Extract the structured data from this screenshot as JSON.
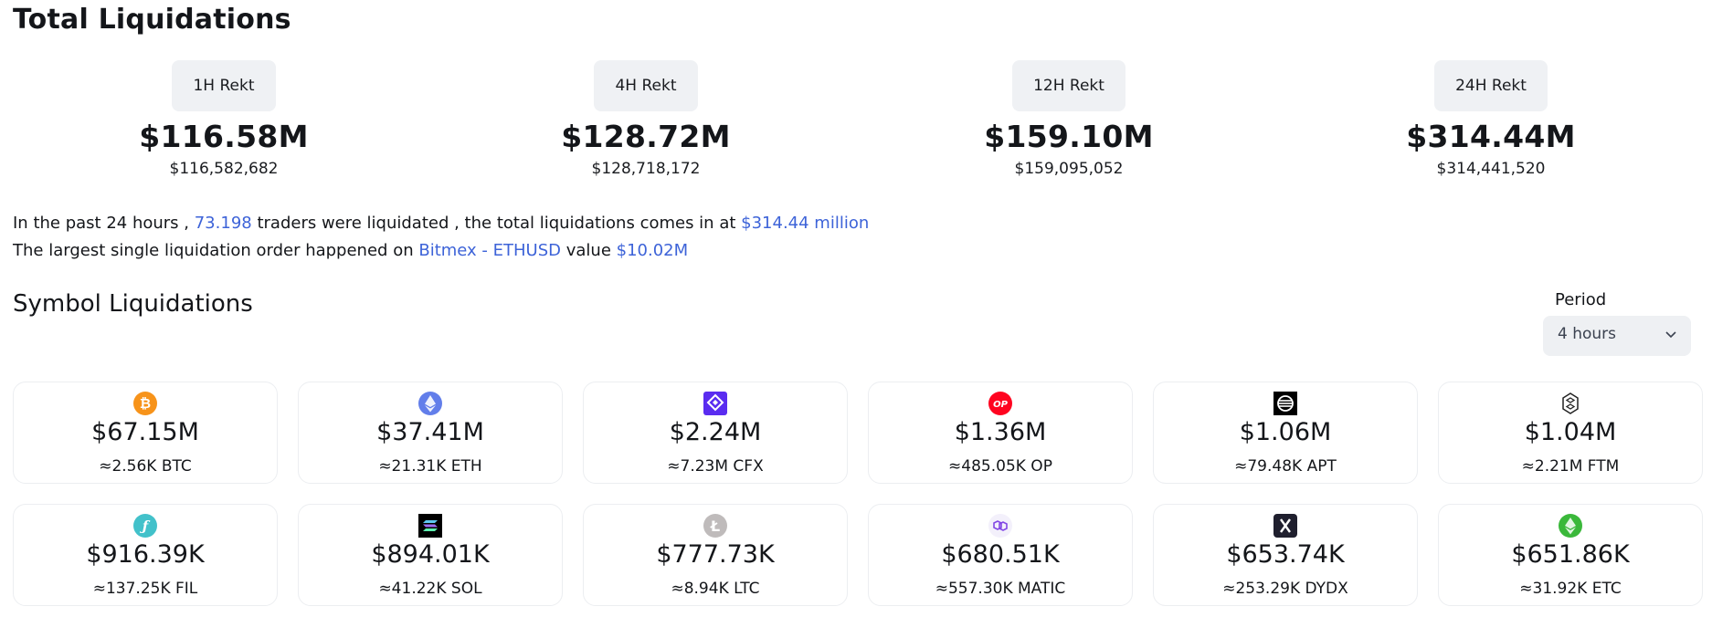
{
  "page_title": "Total Liquidations",
  "rekt": [
    {
      "label": "1H Rekt",
      "value": "$116.58M",
      "exact": "$116,582,682"
    },
    {
      "label": "4H Rekt",
      "value": "$128.72M",
      "exact": "$128,718,172"
    },
    {
      "label": "12H Rekt",
      "value": "$159.10M",
      "exact": "$159,095,052"
    },
    {
      "label": "24H Rekt",
      "value": "$314.44M",
      "exact": "$314,441,520"
    }
  ],
  "summary": {
    "line1_prefix": "In the past 24 hours ,",
    "traders": "73.198",
    "line1_mid": "traders were liquidated , the total liquidations comes in at",
    "total": "$314.44 million",
    "line2_prefix": "The largest single liquidation order happened on",
    "exchange": "Bitmex - ETHUSD",
    "line2_mid": "value",
    "largest_value": "$10.02M"
  },
  "section_title": "Symbol Liquidations",
  "period": {
    "label": "Period",
    "selected": "4 hours"
  },
  "colors": {
    "accent": "#3d63d8"
  },
  "symbols": [
    {
      "icon": "bitcoin-icon",
      "value": "$67.15M",
      "amount": "≈2.56K BTC",
      "color": "#f7931a"
    },
    {
      "icon": "ethereum-icon",
      "value": "$37.41M",
      "amount": "≈21.31K ETH",
      "color": "#627eea"
    },
    {
      "icon": "conflux-icon",
      "value": "$2.24M",
      "amount": "≈7.23M CFX",
      "color": "#5a2cf0"
    },
    {
      "icon": "optimism-icon",
      "value": "$1.36M",
      "amount": "≈485.05K OP",
      "color": "#ff0420"
    },
    {
      "icon": "aptos-icon",
      "value": "$1.06M",
      "amount": "≈79.48K APT",
      "color": "#000000"
    },
    {
      "icon": "fantom-icon",
      "value": "$1.04M",
      "amount": "≈2.21M FTM",
      "color": "#222222"
    },
    {
      "icon": "filecoin-icon",
      "value": "$916.39K",
      "amount": "≈137.25K FIL",
      "color": "#42c1ca"
    },
    {
      "icon": "solana-icon",
      "value": "$894.01K",
      "amount": "≈41.22K SOL",
      "color": "#000000"
    },
    {
      "icon": "litecoin-icon",
      "value": "$777.73K",
      "amount": "≈8.94K LTC",
      "color": "#bfbbbb"
    },
    {
      "icon": "polygon-icon",
      "value": "$680.51K",
      "amount": "≈557.30K MATIC",
      "color": "#8247e5"
    },
    {
      "icon": "dydx-icon",
      "value": "$653.74K",
      "amount": "≈253.29K DYDX",
      "color": "#1f1f2e"
    },
    {
      "icon": "ethereum-classic-icon",
      "value": "$651.86K",
      "amount": "≈31.92K ETC",
      "color": "#3ab83a"
    }
  ]
}
